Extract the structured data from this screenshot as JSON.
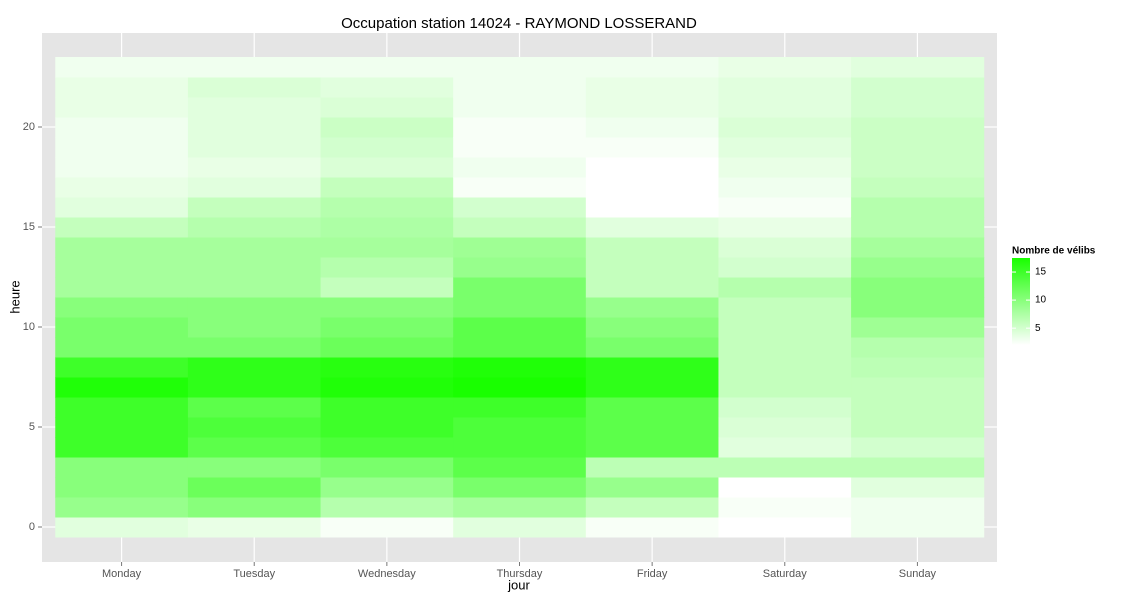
{
  "chart_data": {
    "type": "heatmap",
    "title": "Occupation station 14024 - RAYMOND LOSSERAND",
    "x_label": "jour",
    "y_label": "heure",
    "categories": [
      "Monday",
      "Tuesday",
      "Wednesday",
      "Thursday",
      "Friday",
      "Saturday",
      "Sunday"
    ],
    "y": [
      0,
      1,
      2,
      3,
      4,
      5,
      6,
      7,
      8,
      9,
      10,
      11,
      12,
      13,
      14,
      15,
      16,
      17,
      18,
      19,
      20,
      21,
      22,
      23
    ],
    "values": [
      [
        4,
        9,
        10,
        10,
        15,
        15,
        15,
        17,
        15,
        11,
        11,
        10,
        8,
        8,
        8,
        6,
        4,
        3.5,
        3,
        3,
        3,
        3.5,
        3.5,
        3
      ],
      [
        3.5,
        10,
        12,
        10,
        13,
        14,
        13,
        16,
        16,
        11,
        10,
        10,
        8,
        8,
        8,
        7,
        6,
        4,
        3.5,
        4,
        4,
        4,
        4.5,
        3
      ],
      [
        2.5,
        7,
        9,
        11,
        14,
        15,
        15,
        17,
        16.5,
        12,
        11,
        10,
        6,
        7,
        8,
        7.5,
        7,
        6,
        4.5,
        5,
        5.5,
        4.5,
        4,
        3
      ],
      [
        4,
        8,
        11,
        13,
        14,
        14,
        15,
        17.5,
        17,
        13,
        13,
        11,
        11,
        9,
        8.5,
        6,
        5,
        2.5,
        3,
        2.5,
        2.5,
        3,
        3,
        3
      ],
      [
        2.5,
        6,
        9,
        6.5,
        13,
        13,
        13,
        16,
        16,
        11,
        10,
        9,
        6,
        6,
        6,
        4,
        2,
        2,
        2,
        2.5,
        3,
        3.5,
        3.5,
        3
      ],
      [
        2,
        2.5,
        2,
        6.5,
        4,
        4.5,
        5,
        6,
        6,
        6,
        6,
        6,
        7,
        5,
        4.5,
        3.5,
        2.5,
        3,
        3.5,
        4,
        4.5,
        4,
        4,
        3.5
      ],
      [
        3,
        3,
        4,
        6.5,
        5,
        6,
        6,
        6,
        6.5,
        7,
        8.5,
        10,
        10,
        9,
        8,
        7,
        7,
        6,
        5.5,
        5.5,
        5.5,
        5,
        5,
        4
      ]
    ],
    "ylim": [
      -1.75,
      24.7
    ],
    "yticks": [
      0,
      5,
      10,
      15,
      20
    ],
    "legend_title": "Nombre de vélibs",
    "color_low": "#ffffff",
    "color_high": "#19ff00",
    "clim": [
      2,
      17.5
    ],
    "cticks": [
      5,
      10,
      15
    ]
  }
}
